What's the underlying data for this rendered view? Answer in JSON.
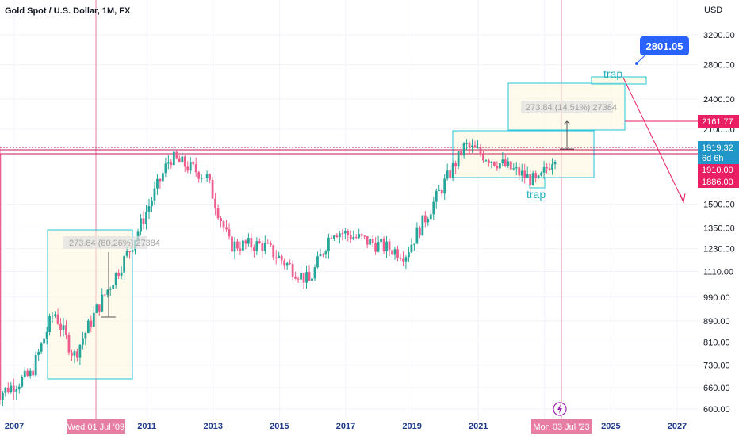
{
  "chart_data": {
    "type": "candlestick",
    "title": "Gold Spot / U.S. Dollar, 1M, FX",
    "currency": "USD",
    "x_axis_ticks": [
      "2007",
      "2011",
      "2013",
      "2015",
      "2017",
      "2019",
      "2021",
      "2023",
      "2025",
      "2027"
    ],
    "y_axis_ticks": [
      "3200.00",
      "2800.00",
      "2400.00",
      "2100.00",
      "1500.00",
      "1350.00",
      "1230.00",
      "1110.00",
      "990.00",
      "890.00",
      "810.00",
      "730.00",
      "660.00",
      "600.00"
    ],
    "y_scale": "log",
    "price_labels": [
      {
        "value": "2161.77",
        "color": "#e91e63"
      },
      {
        "value": "1919.32",
        "sub": "6d 6h",
        "color": "#2196c8"
      },
      {
        "value": "1910.00",
        "color": "#e91e63"
      },
      {
        "value": "1886.00",
        "color": "#e91e63"
      }
    ],
    "date_labels": [
      "Wed 01 Jul '09",
      "Mon 03 Jul '23"
    ],
    "measure_notes": [
      "273.84 (80.26%) 27384",
      "273.84 (14.51%) 27384"
    ],
    "annotations": [
      "trap",
      "trap"
    ],
    "callout": "2801.05",
    "yearly_approx": [
      {
        "x": 2006.5,
        "y": 640
      },
      {
        "x": 2007.5,
        "y": 700
      },
      {
        "x": 2008.2,
        "y": 930
      },
      {
        "x": 2008.8,
        "y": 760
      },
      {
        "x": 2009.5,
        "y": 940
      },
      {
        "x": 2010.5,
        "y": 1230
      },
      {
        "x": 2011.7,
        "y": 1850
      },
      {
        "x": 2012.8,
        "y": 1700
      },
      {
        "x": 2013.5,
        "y": 1250
      },
      {
        "x": 2014.5,
        "y": 1250
      },
      {
        "x": 2015.9,
        "y": 1060
      },
      {
        "x": 2016.6,
        "y": 1340
      },
      {
        "x": 2018.8,
        "y": 1200
      },
      {
        "x": 2020.6,
        "y": 1950
      },
      {
        "x": 2022.8,
        "y": 1650
      },
      {
        "x": 2023.4,
        "y": 1920
      }
    ],
    "colors": {
      "up": "#26a69a",
      "down": "#ef5d8e",
      "accent": "#e91e63",
      "box": "#26c6da",
      "callout": "#2962ff"
    }
  }
}
